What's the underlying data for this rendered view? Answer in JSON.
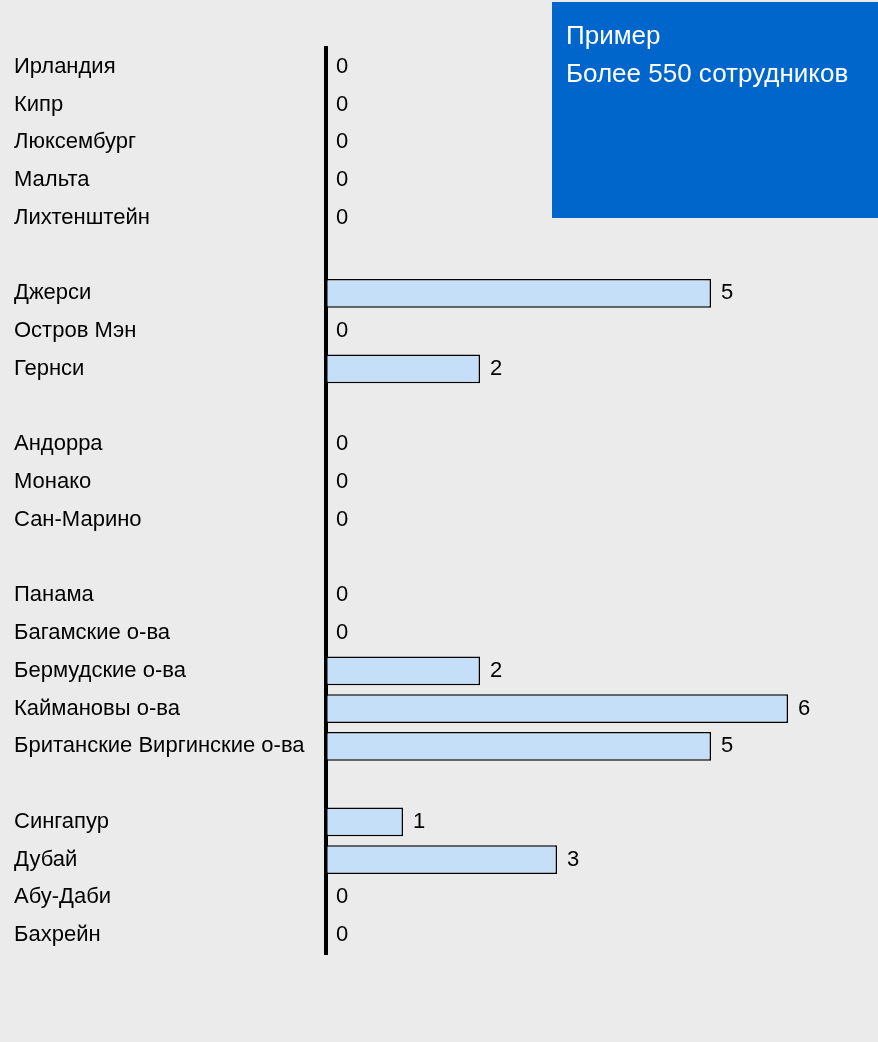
{
  "chart_data": {
    "type": "bar",
    "orientation": "horizontal",
    "categories": [
      "Ирландия",
      "Кипр",
      "Люксембург",
      "Мальта",
      "Лихтенштейн",
      null,
      "Джерси",
      "Остров Мэн",
      "Гернси",
      null,
      "Андорра",
      "Монако",
      "Сан-Марино",
      null,
      "Панама",
      "Багамские о-ва",
      "Бермудские о-ва",
      "Каймановы о-ва",
      "Британские Виргинские о-ва",
      null,
      "Сингапур",
      "Дубай",
      "Абу-Даби",
      "Бахрейн"
    ],
    "values": [
      0,
      0,
      0,
      0,
      0,
      null,
      5,
      0,
      2,
      null,
      0,
      0,
      0,
      null,
      0,
      0,
      2,
      6,
      5,
      null,
      1,
      3,
      0,
      0
    ],
    "color": "#c6dff8",
    "xlim": [
      0,
      6
    ],
    "data_labels": true,
    "tick_labels": "y",
    "grid": false,
    "legend": false,
    "annotations": [
      "Пример",
      "Более 550 сотрудников"
    ]
  }
}
